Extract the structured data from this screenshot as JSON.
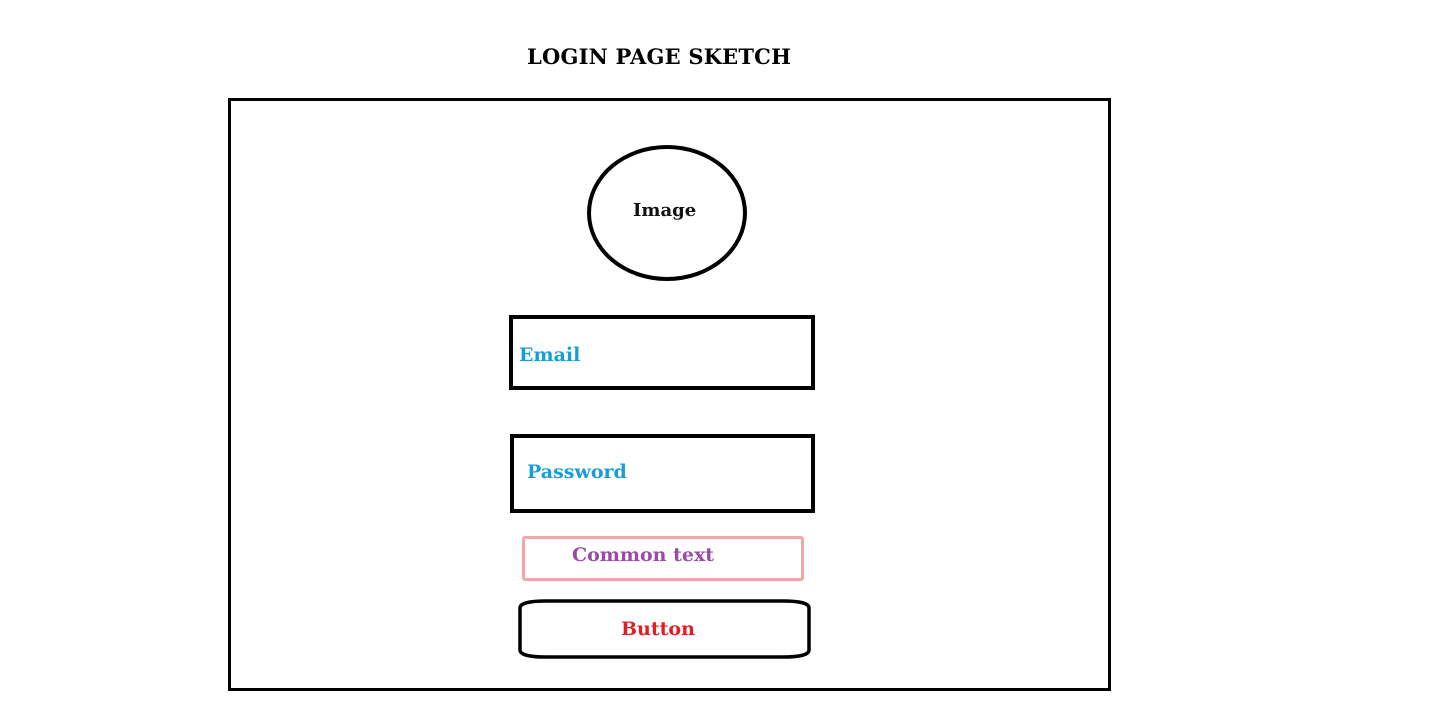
{
  "title": "LOGIN PAGE SKETCH",
  "image_placeholder": {
    "label": "Image"
  },
  "email_field": {
    "label": "Email"
  },
  "password_field": {
    "label": "Password"
  },
  "common_text": {
    "label": "Common text"
  },
  "button": {
    "label": "Button"
  },
  "colors": {
    "outline": "#000000",
    "field_label": "#1a9dd6",
    "common_text": "#9b4aa8",
    "common_border": "#f2a8a8",
    "button_text": "#e01e25"
  }
}
